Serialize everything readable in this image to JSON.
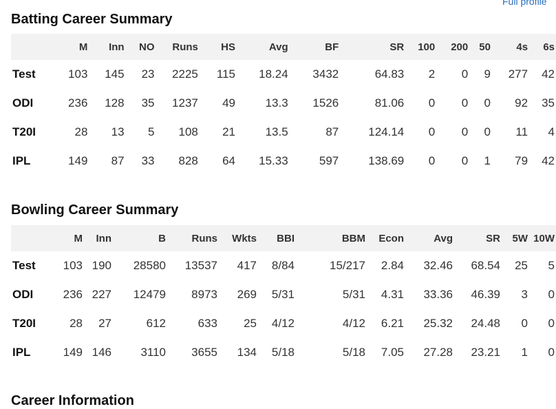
{
  "top_link": "Full profile",
  "batting": {
    "title": "Batting Career Summary",
    "headers": [
      "",
      "M",
      "Inn",
      "NO",
      "Runs",
      "HS",
      "Avg",
      "BF",
      "SR",
      "100",
      "200",
      "50",
      "4s",
      "6s"
    ],
    "rows": [
      [
        "Test",
        "103",
        "145",
        "23",
        "2225",
        "115",
        "18.24",
        "3432",
        "64.83",
        "2",
        "0",
        "9",
        "277",
        "42"
      ],
      [
        "ODI",
        "236",
        "128",
        "35",
        "1237",
        "49",
        "13.3",
        "1526",
        "81.06",
        "0",
        "0",
        "0",
        "92",
        "35"
      ],
      [
        "T20I",
        "28",
        "13",
        "5",
        "108",
        "21",
        "13.5",
        "87",
        "124.14",
        "0",
        "0",
        "0",
        "11",
        "4"
      ],
      [
        "IPL",
        "149",
        "87",
        "33",
        "828",
        "64",
        "15.33",
        "597",
        "138.69",
        "0",
        "0",
        "1",
        "79",
        "42"
      ]
    ]
  },
  "bowling": {
    "title": "Bowling Career Summary",
    "headers": [
      "",
      "M",
      "Inn",
      "B",
      "Runs",
      "Wkts",
      "BBI",
      "BBM",
      "Econ",
      "Avg",
      "SR",
      "5W",
      "10W"
    ],
    "rows": [
      [
        "Test",
        "103",
        "190",
        "28580",
        "13537",
        "417",
        "8/84",
        "15/217",
        "2.84",
        "32.46",
        "68.54",
        "25",
        "5"
      ],
      [
        "ODI",
        "236",
        "227",
        "12479",
        "8973",
        "269",
        "5/31",
        "5/31",
        "4.31",
        "33.36",
        "46.39",
        "3",
        "0"
      ],
      [
        "T20I",
        "28",
        "27",
        "612",
        "633",
        "25",
        "4/12",
        "4/12",
        "6.21",
        "25.32",
        "24.48",
        "0",
        "0"
      ],
      [
        "IPL",
        "149",
        "146",
        "3110",
        "3655",
        "134",
        "5/18",
        "5/18",
        "7.05",
        "27.28",
        "23.21",
        "1",
        "0"
      ]
    ]
  },
  "career": {
    "title": "Career Information"
  }
}
